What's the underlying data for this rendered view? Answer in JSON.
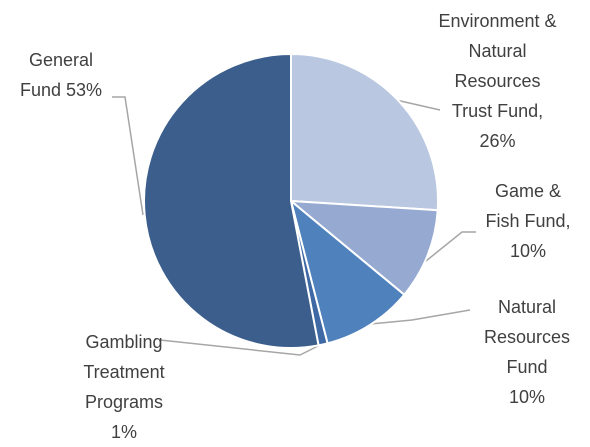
{
  "chart_data": {
    "type": "pie",
    "categories": [
      "Environment & Natural Resources Trust Fund,",
      "Game & Fish Fund,",
      "Natural Resources Fund",
      "Gambling Treatment Programs",
      "General Fund"
    ],
    "values": [
      26,
      10,
      10,
      1,
      53
    ],
    "value_labels": [
      "26%",
      "10%",
      "10%",
      "1%",
      "53%"
    ],
    "colors": [
      "#b9c7e1",
      "#95a9d1",
      "#4f81bd",
      "#3e69a4",
      "#3b5e8d"
    ]
  }
}
